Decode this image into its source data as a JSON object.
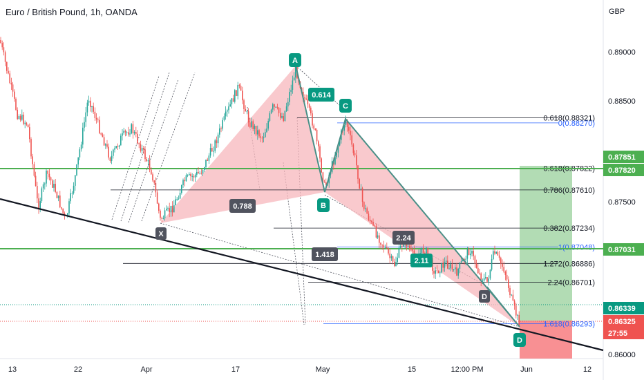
{
  "header": {
    "title": "Euro / British Pound, 1h, OANDA"
  },
  "colors": {
    "bull": "#26a69a",
    "bear": "#ef5350",
    "pattern_fill": "#f7b7bc",
    "leg_line": "#4a8f87",
    "teal": "#089981",
    "dark": "#50535e",
    "green_line": "#4caf50",
    "fib_line": "#131722",
    "fib_blue": "#2962ff",
    "profit": "#a5d6a7",
    "loss": "#f77c80",
    "trend": "#131722"
  },
  "chart_data": {
    "type": "candlestick",
    "symbol": "Euro / British Pound",
    "interval": "1h",
    "source": "OANDA",
    "y_unit": "GBP",
    "ylim": [
      0.8594,
      0.8925
    ],
    "price_ticks": [
      "0.89000",
      "0.88500",
      "0.87500",
      "0.86000"
    ],
    "time_ticks": [
      "13",
      "22",
      "Apr",
      "17",
      "May",
      "15",
      "12:00 PM",
      "Jun",
      "12"
    ],
    "pattern_points": [
      {
        "label": "X",
        "price": 0.873
      },
      {
        "label": "A",
        "price": 0.888
      },
      {
        "label": "B",
        "price": 0.8763
      },
      {
        "label": "C",
        "price": 0.8837
      },
      {
        "label": "D",
        "price": 0.8668
      },
      {
        "label": "D",
        "price": 0.8628
      }
    ],
    "ratio_labels": [
      "0.614",
      "0.788",
      "1.418",
      "2.24",
      "2.11"
    ],
    "fib_levels": [
      {
        "label": "0.618(0.88321)",
        "price": 0.88321,
        "style": "black"
      },
      {
        "label": "0(0.88270)",
        "price": 0.8827,
        "style": "blue"
      },
      {
        "label": "0.618(0.87822)",
        "price": 0.87822,
        "style": "black"
      },
      {
        "label": "0.786(0.87610)",
        "price": 0.8761,
        "style": "black"
      },
      {
        "label": "0.382(0.87234)",
        "price": 0.87234,
        "style": "black"
      },
      {
        "label": "1(0.87048)",
        "price": 0.87048,
        "style": "blue"
      },
      {
        "label": "1.272(0.86886)",
        "price": 0.86886,
        "style": "black"
      },
      {
        "label": "2.24(0.86701)",
        "price": 0.86701,
        "style": "black"
      },
      {
        "label": "1.618(0.86293)",
        "price": 0.86293,
        "style": "blue"
      }
    ],
    "horizontal_levels": [
      0.8782,
      0.87031
    ],
    "price_badges": [
      {
        "label": "0.87851",
        "price": 0.87851,
        "color": "#4caf50"
      },
      {
        "label": "0.87820",
        "price": 0.8782,
        "color": "#4caf50"
      },
      {
        "label": "0.87031",
        "price": 0.87031,
        "color": "#4caf50"
      },
      {
        "label": "0.86339",
        "price": 0.86339,
        "color": "#089981"
      },
      {
        "label": "0.86325",
        "price": 0.86325,
        "color": "#ef5350"
      }
    ],
    "countdown": "27:55",
    "position": {
      "entry": 0.86325,
      "target": 0.87851,
      "stop": 0.86055
    },
    "legend": "none",
    "grid": false
  }
}
